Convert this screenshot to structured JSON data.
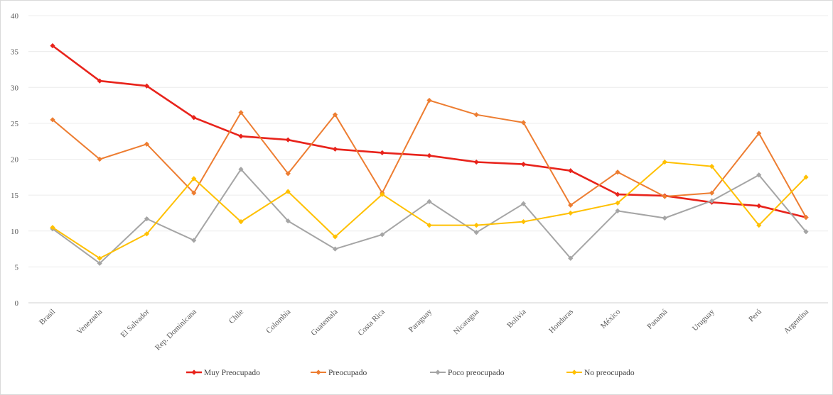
{
  "chart_data": {
    "type": "line",
    "title": "",
    "xlabel": "",
    "ylabel": "",
    "ylim": [
      0,
      40
    ],
    "yticks": [
      0,
      5,
      10,
      15,
      20,
      25,
      30,
      35,
      40
    ],
    "grid": true,
    "legend_position": "bottom",
    "categories": [
      "Brasil",
      "Venezuela",
      "El Salvador",
      "Rep. Dominicana",
      "Chile",
      "Colombia",
      "Guatemala",
      "Costa Rica",
      "Paraguay",
      "Nicaragua",
      "Bolivia",
      "Honduras",
      "México",
      "Panamá",
      "Uruguay",
      "Perú",
      "Argentina"
    ],
    "series": [
      {
        "name": "Muy Preocupado",
        "color": "#e8231b",
        "values": [
          35.8,
          30.9,
          30.2,
          25.8,
          23.2,
          22.7,
          21.4,
          20.9,
          20.5,
          19.6,
          19.3,
          18.4,
          15.1,
          14.9,
          14.0,
          13.5,
          11.9
        ]
      },
      {
        "name": "Preocupado",
        "color": "#ed7d31",
        "values": [
          25.5,
          20.0,
          22.1,
          15.3,
          26.5,
          18.0,
          26.2,
          15.3,
          28.2,
          26.2,
          25.1,
          13.6,
          18.2,
          14.8,
          15.3,
          23.6,
          11.9
        ]
      },
      {
        "name": "Poco preocupado",
        "color": "#a5a5a5",
        "values": [
          10.3,
          5.5,
          11.7,
          8.7,
          18.6,
          11.4,
          7.5,
          9.5,
          14.1,
          9.8,
          13.8,
          6.2,
          12.8,
          11.8,
          14.2,
          17.8,
          9.9
        ]
      },
      {
        "name": "No preocupado",
        "color": "#ffc000",
        "values": [
          10.5,
          6.2,
          9.6,
          17.3,
          11.3,
          15.5,
          9.2,
          15.1,
          10.8,
          10.8,
          11.3,
          12.5,
          13.9,
          19.6,
          19.0,
          10.8,
          17.5
        ]
      }
    ]
  }
}
